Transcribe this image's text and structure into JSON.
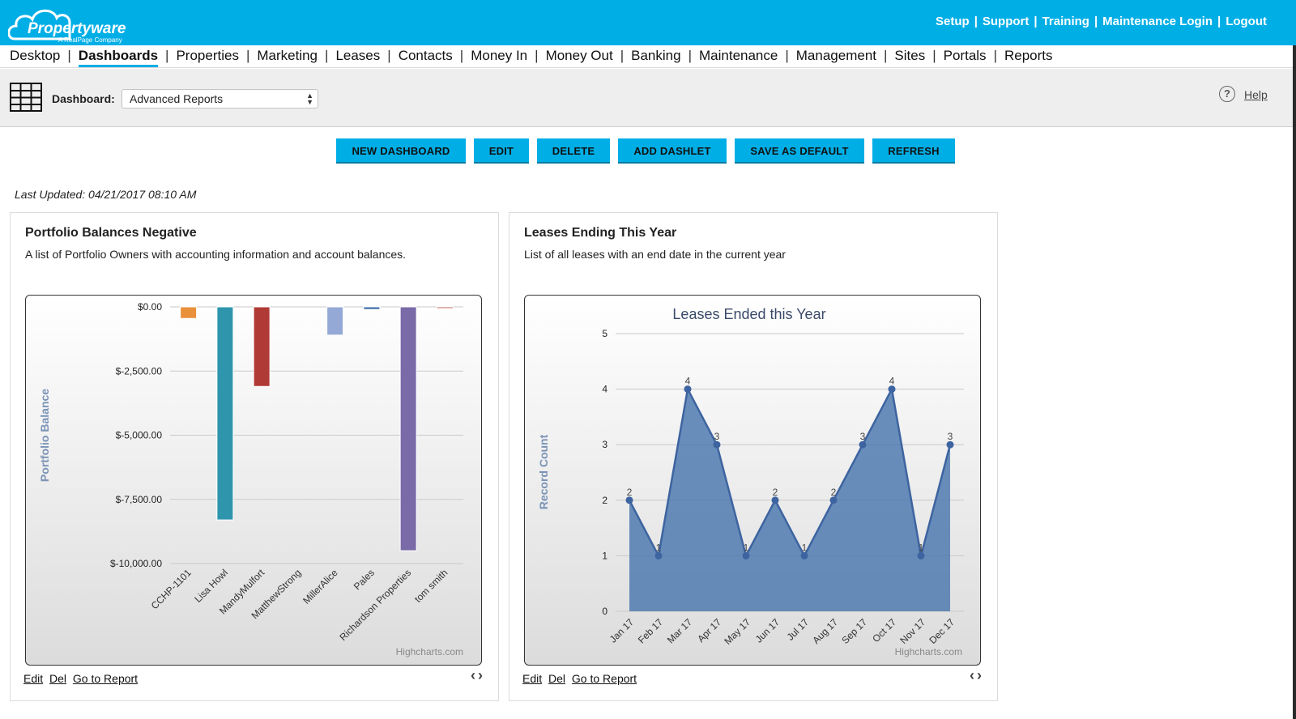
{
  "brand": {
    "name": "Propertyware",
    "tagline": "A RealPage Company"
  },
  "top_links": [
    "Setup",
    "Support",
    "Training",
    "Maintenance Login",
    "Logout"
  ],
  "menu": {
    "items": [
      "Desktop",
      "Dashboards",
      "Properties",
      "Marketing",
      "Leases",
      "Contacts",
      "Money In",
      "Money Out",
      "Banking",
      "Maintenance",
      "Management",
      "Sites",
      "Portals",
      "Reports"
    ],
    "active": "Dashboards"
  },
  "dashboard": {
    "label": "Dashboard:",
    "selected": "Advanced Reports",
    "help": "Help"
  },
  "buttons": {
    "new_dashboard": "NEW DASHBOARD",
    "edit": "EDIT",
    "delete": "DELETE",
    "add_dashlet": "ADD DASHLET",
    "save_default": "SAVE AS DEFAULT",
    "refresh": "REFRESH"
  },
  "last_updated": "Last Updated: 04/21/2017 08:10 AM",
  "panels": {
    "left": {
      "title": "Portfolio Balances Negative",
      "description": "A list of Portfolio Owners with accounting information and account balances.",
      "links": [
        "Edit",
        "Del",
        "Go to Report"
      ]
    },
    "right": {
      "title": "Leases Ending This Year",
      "description": "List of all leases with an end date in the current year",
      "links": [
        "Edit",
        "Del",
        "Go to Report"
      ]
    }
  },
  "colors": {
    "accent": "#00aee6",
    "area_fill": "#4a76ad"
  },
  "chart_data": [
    {
      "type": "bar",
      "title": "",
      "ylabel": "Portfolio Balance",
      "xlabel": "",
      "credit": "Highcharts.com",
      "categories": [
        "CCHP-1101",
        "Lisa Howl",
        "MandyMulfort",
        "MatthewStrong",
        "MillerAlice",
        "Pales",
        "Richardson Properties",
        "tom smith"
      ],
      "yticks": [
        "$0.00",
        "$-2,500.00",
        "$-5,000.00",
        "$-7,500.00",
        "$-10,000.00"
      ],
      "ylim": [
        -10000,
        0
      ],
      "series": [
        {
          "values": [
            -450,
            -8300,
            -3100,
            0,
            -1100,
            -100,
            -9500,
            -50
          ]
        }
      ],
      "bar_colors": [
        "#e8903a",
        "#2f95ad",
        "#b03a36",
        "#7a9a3a",
        "#95a9d6",
        "#3a6aa8",
        "#7a6aa8",
        "#c06a5a"
      ],
      "grid": true
    },
    {
      "type": "area",
      "title": "Leases Ended this Year",
      "ylabel": "Record Count",
      "xlabel": "",
      "credit": "Highcharts.com",
      "categories": [
        "Jan 17",
        "Feb 17",
        "Mar 17",
        "Apr 17",
        "May 17",
        "Jun 17",
        "Jul 17",
        "Aug 17",
        "Sep 17",
        "Oct 17",
        "Nov 17",
        "Dec 17"
      ],
      "yticks": [
        "0",
        "1",
        "2",
        "3",
        "4",
        "5"
      ],
      "ylim": [
        0,
        5
      ],
      "series": [
        {
          "values": [
            2,
            1,
            4,
            3,
            1,
            2,
            1,
            2,
            3,
            4,
            1,
            3
          ]
        }
      ],
      "data_labels": [
        "2",
        "1",
        "4",
        "3",
        "1",
        "2",
        "1",
        "2",
        "3",
        "4",
        "1",
        "3"
      ],
      "grid": true
    }
  ]
}
